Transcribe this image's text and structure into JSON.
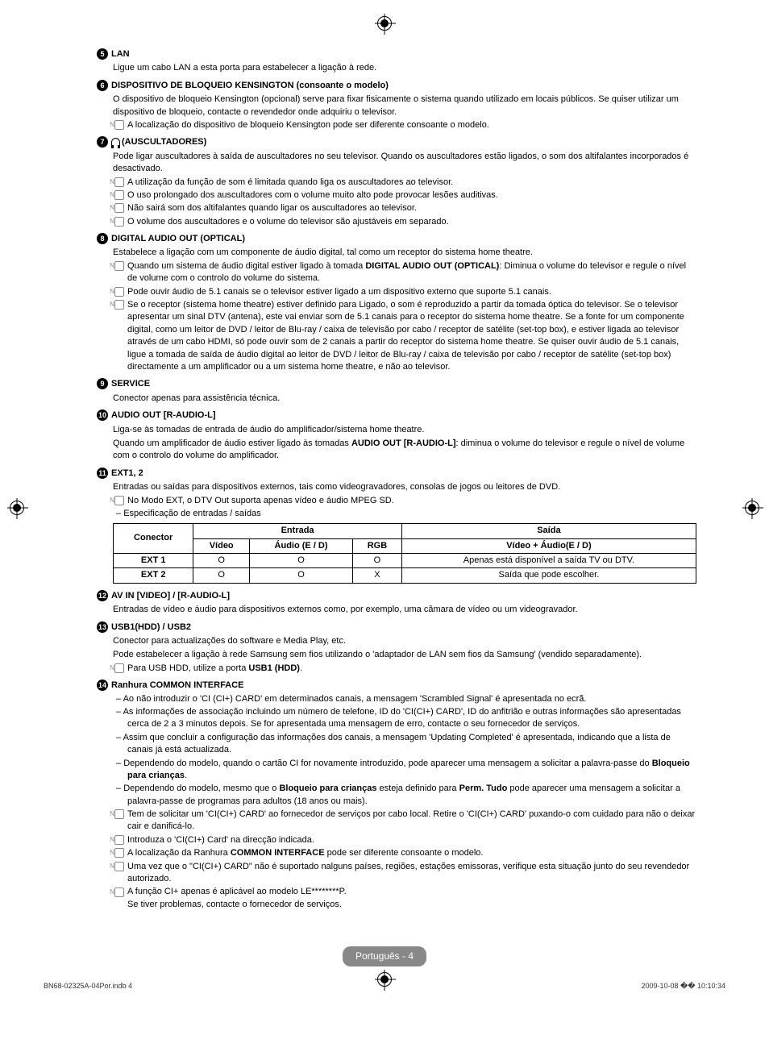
{
  "items": [
    {
      "num": "5",
      "title": "LAN",
      "body": [
        "Ligue um cabo LAN a esta porta para estabelecer a ligação à rede."
      ]
    },
    {
      "num": "6",
      "title_html": "<b>DISPOSITIVO DE BLOQUEIO KENSINGTON</b> (consoante o modelo)",
      "body": [
        "O dispositivo de bloqueio Kensington (opcional) serve para fixar fisicamente o sistema quando utilizado em locais públicos. Se quiser utilizar um dispositivo de bloqueio, contacte o revendedor onde adquiriu o televisor."
      ],
      "notes": [
        "A localização do dispositivo de bloqueio Kensington pode ser diferente consoante o modelo."
      ]
    },
    {
      "num": "7",
      "headphone": true,
      "title": "(AUSCULTADORES)",
      "body": [
        "Pode ligar auscultadores à saída de auscultadores no seu televisor. Quando os auscultadores estão ligados, o som dos altifalantes incorporados é desactivado."
      ],
      "notes": [
        "A utilização da função de som é limitada quando liga os auscultadores ao televisor.",
        "O uso prolongado dos auscultadores com o volume muito alto pode provocar lesões auditivas.",
        "Não sairá som dos altifalantes quando ligar os auscultadores ao televisor.",
        "O volume dos auscultadores e o volume do televisor são ajustáveis em separado."
      ]
    },
    {
      "num": "8",
      "title": "DIGITAL AUDIO OUT (OPTICAL)",
      "body": [
        "Estabelece a ligação com um componente de áudio digital, tal como um receptor do sistema home theatre."
      ],
      "notes": [
        "Quando um sistema de áudio digital estiver ligado à tomada <b>DIGITAL AUDIO OUT (OPTICAL)</b>: Diminua o volume do televisor e regule o nível de volume com o controlo do volume do sistema.",
        "Pode ouvir áudio de 5.1 canais se o televisor estiver ligado a um dispositivo externo que suporte 5.1 canais.",
        "Se o receptor (sistema home theatre) estiver definido para Ligado, o som é reproduzido a partir da tomada óptica do televisor. Se o televisor apresentar um sinal DTV (antena), este vai enviar som de 5.1 canais para o receptor do sistema home theatre. Se a fonte for um componente digital, como um leitor de DVD / leitor de Blu-ray / caixa de televisão por cabo / receptor de satélite (set-top box), e estiver ligada ao televisor através de um cabo HDMI, só pode ouvir som de 2 canais a partir do receptor do sistema home theatre. Se quiser ouvir áudio de 5.1 canais, ligue a tomada de saída de áudio digital ao leitor de DVD / leitor de Blu-ray / caixa de televisão por cabo / receptor de satélite (set-top box) directamente a um amplificador ou a um sistema home theatre, e não ao televisor."
      ]
    },
    {
      "num": "9",
      "title": "SERVICE",
      "body": [
        "Conector apenas para assistência técnica."
      ]
    },
    {
      "num": "10",
      "title": "AUDIO OUT [R-AUDIO-L]",
      "body": [
        "Liga-se às tomadas de entrada de áudio do amplificador/sistema home theatre.",
        "Quando um amplificador de áudio estiver ligado às tomadas <b>AUDIO OUT [R-AUDIO-L]</b>: diminua o volume do televisor e regule o nível de volume com o controlo do volume do amplificador."
      ]
    },
    {
      "num": "11",
      "title": "EXT1, 2",
      "body": [
        "Entradas ou saídas para dispositivos externos, tais como videogravadores, consolas de jogos ou leitores de DVD."
      ],
      "notes": [
        "No Modo EXT, o DTV Out suporta apenas vídeo e áudio MPEG SD."
      ],
      "dashes": [
        "Especificação de entradas / saídas"
      ]
    },
    {
      "num": "12",
      "title": "AV IN [VIDEO] / [R-AUDIO-L]",
      "body": [
        "Entradas de vídeo e áudio para dispositivos externos como, por exemplo, uma câmara de vídeo ou um videogravador."
      ]
    },
    {
      "num": "13",
      "title": "USB1(HDD) / USB2",
      "body": [
        "Conector para actualizações do software e Media Play, etc.",
        "Pode estabelecer a ligação à rede Samsung sem fios utilizando o 'adaptador de LAN sem fios da Samsung' (vendido separadamente)."
      ],
      "notes": [
        "Para USB HDD, utilize a porta <b>USB1 (HDD)</b>."
      ]
    },
    {
      "num": "14",
      "title_html": "Ranhura <b>COMMON INTERFACE</b>",
      "dashes": [
        "Ao não introduzir o 'CI (CI+) CARD' em determinados canais, a mensagem 'Scrambled Signal' é apresentada no ecrã.",
        "As informações de associação incluindo um número de telefone, ID do 'CI(CI+) CARD', ID do anfitrião e outras informações são apresentadas cerca de 2 a 3 minutos depois. Se for apresentada uma mensagem de erro, contacte o seu fornecedor de serviços.",
        "Assim que concluir a configuração das informações dos canais, a mensagem 'Updating Completed' é apresentada, indicando que a lista de canais já está actualizada.",
        "Dependendo do modelo, quando o cartão CI for novamente introduzido, pode aparecer uma mensagem a solicitar a palavra-passe do <b>Bloqueio para crianças</b>.",
        "Dependendo do modelo, mesmo que o <b>Bloqueio para crianças</b> esteja definido para <b>Perm. Tudo</b> pode aparecer uma mensagem a solicitar a palavra-passe de programas para adultos (18 anos ou mais)."
      ],
      "notes": [
        "Tem de solicitar um 'CI(CI+) CARD' ao fornecedor de serviços por cabo local. Retire o 'CI(CI+) CARD' puxando-o com cuidado para não o deixar cair e danificá-lo.",
        "Introduza o 'CI(CI+) Card' na direcção indicada.",
        "A localização da Ranhura <b>COMMON INTERFACE</b> pode ser diferente consoante o modelo.",
        "Uma vez que o \"CI(CI+) CARD\" não é suportado nalguns países, regiões, estações emissoras, verifique esta situação junto do seu revendedor autorizado.",
        "A função CI+ apenas é aplicável ao modelo LE********P.<br>Se tiver problemas, contacte o fornecedor de serviços."
      ]
    }
  ],
  "table": {
    "header_top": {
      "c1": "Conector",
      "c2": "Entrada",
      "c3": "Saída"
    },
    "header_sub": {
      "a": "Vídeo",
      "b": "Áudio (E / D)",
      "c": "RGB",
      "d": "Vídeo + Áudio(E / D)"
    },
    "rows": [
      {
        "c": "EXT 1",
        "v": "O",
        "a": "O",
        "r": "O",
        "out": "Apenas está disponível a saída TV ou DTV."
      },
      {
        "c": "EXT 2",
        "v": "O",
        "a": "O",
        "r": "X",
        "out": "Saída que pode escolher."
      }
    ]
  },
  "page_label": "Português - 4",
  "footer_left": "BN68-02325A-04Por.indb   4",
  "footer_right": "2009-10-08   �� 10:10:34"
}
